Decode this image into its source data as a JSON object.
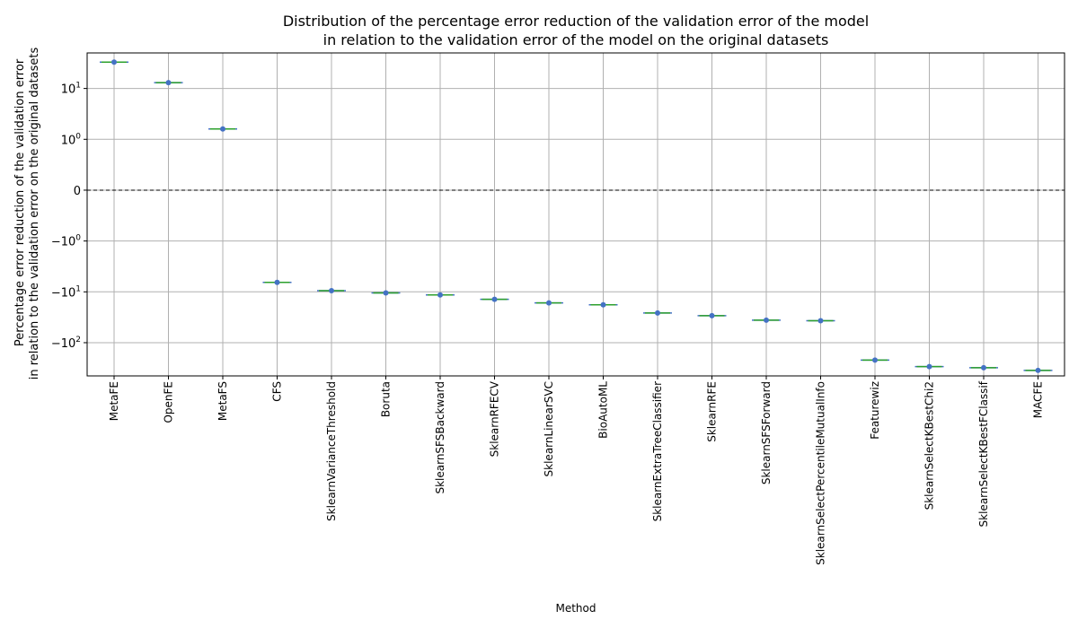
{
  "chart_data": {
    "type": "box",
    "title_lines": [
      "Distribution of the percentage error reduction of the validation error of the model",
      "in relation to the validation error of the model on the original datasets"
    ],
    "xlabel": "Method",
    "ylabel_lines": [
      "Percentage error reduction of the validation error",
      "in relation to the validation error on the original datasets"
    ],
    "yscale": "symlog",
    "linthresh": 1,
    "ylim": [
      -450,
      50
    ],
    "yticks": [
      {
        "value": 10,
        "label": "10",
        "exp": "1"
      },
      {
        "value": 1,
        "label": "10",
        "exp": "0"
      },
      {
        "value": 0,
        "label": "0",
        "exp": ""
      },
      {
        "value": -1,
        "label": "−10",
        "exp": "0"
      },
      {
        "value": -10,
        "label": "−10",
        "exp": "1"
      },
      {
        "value": -100,
        "label": "−10",
        "exp": "2"
      }
    ],
    "reference_line": 0,
    "grid": true,
    "categories": [
      "MetaFE",
      "OpenFE",
      "MetaFS",
      "CFS",
      "SklearnVarianceThreshold",
      "Boruta",
      "SklearnSFSBackward",
      "SklearnRFECV",
      "SklearnLinearSVC",
      "BioAutoML",
      "SklearnExtraTreeClassifier",
      "SklearnRFE",
      "SklearnSFSForward",
      "SklearnSelectPercentileMutualInfo",
      "Featurewiz",
      "SklearnSelectKBestChi2",
      "SklearnSelectKBestFClassif",
      "MACFE"
    ],
    "values": [
      33,
      13,
      1.6,
      -6.5,
      -9.5,
      -10.5,
      -11.5,
      -14,
      -16.5,
      -18,
      -26,
      -29.5,
      -36,
      -37,
      -220,
      -295,
      -310,
      -350
    ],
    "colors": {
      "box": "#4472c4",
      "median": "#2ca02c",
      "point": "#4472c4",
      "grid": "#b0b0b0"
    }
  }
}
